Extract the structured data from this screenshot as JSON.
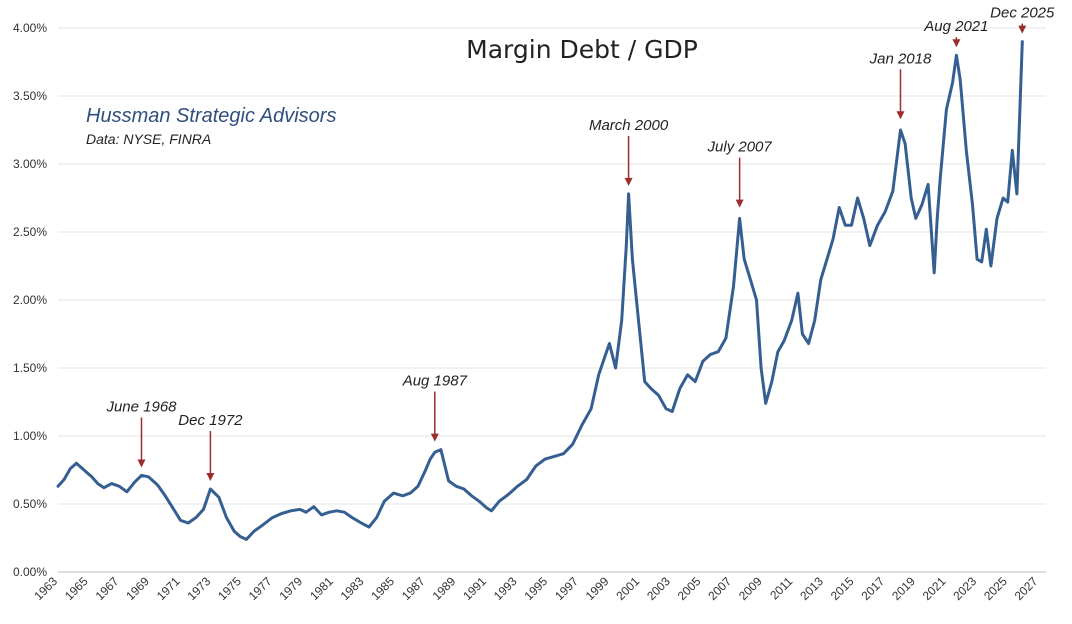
{
  "chart_data": {
    "type": "line",
    "title": "Margin Debt / GDP",
    "subtitle": "Hussman Strategic Advisors",
    "source": "Data: NYSE, FINRA",
    "xlabel": "",
    "ylabel": "",
    "xlim": [
      1963,
      2027.5
    ],
    "ylim": [
      0,
      4.0
    ],
    "grid": true,
    "y_ticks": [
      "0.00%",
      "0.50%",
      "1.00%",
      "1.50%",
      "2.00%",
      "2.50%",
      "3.00%",
      "3.50%",
      "4.00%"
    ],
    "x_ticks": [
      "1963",
      "1965",
      "1967",
      "1969",
      "1971",
      "1973",
      "1975",
      "1977",
      "1979",
      "1981",
      "1983",
      "1985",
      "1987",
      "1989",
      "1991",
      "1993",
      "1995",
      "1997",
      "1999",
      "2001",
      "2003",
      "2005",
      "2007",
      "2009",
      "2011",
      "2013",
      "2015",
      "2017",
      "2019",
      "2021",
      "2023",
      "2025",
      "2027"
    ],
    "series": [
      {
        "color": "#365f91",
        "x": [
          1963.0,
          1963.4,
          1963.8,
          1964.2,
          1964.7,
          1965.2,
          1965.6,
          1966.0,
          1966.5,
          1967.0,
          1967.5,
          1968.0,
          1968.45,
          1968.9,
          1969.5,
          1970.0,
          1970.5,
          1971.0,
          1971.5,
          1972.0,
          1972.5,
          1972.95,
          1973.5,
          1974.0,
          1974.5,
          1974.9,
          1975.3,
          1975.8,
          1976.3,
          1977.0,
          1977.6,
          1978.2,
          1978.8,
          1979.2,
          1979.7,
          1980.2,
          1980.7,
          1981.2,
          1981.7,
          1982.2,
          1982.8,
          1983.3,
          1983.8,
          1984.3,
          1984.9,
          1985.5,
          1986.0,
          1986.5,
          1987.0,
          1987.3,
          1987.6,
          1988.0,
          1988.5,
          1989.0,
          1989.5,
          1990.0,
          1990.5,
          1991.0,
          1991.3,
          1991.8,
          1992.4,
          1993.0,
          1993.6,
          1994.2,
          1994.8,
          1995.4,
          1996.0,
          1996.6,
          1997.2,
          1997.8,
          1998.3,
          1998.6,
          1999.0,
          1999.4,
          1999.8,
          2000.1,
          2000.25,
          2000.5,
          2000.9,
          2001.3,
          2001.7,
          2002.2,
          2002.7,
          2003.1,
          2003.6,
          2004.1,
          2004.6,
          2005.1,
          2005.6,
          2006.1,
          2006.6,
          2007.1,
          2007.5,
          2007.8,
          2008.2,
          2008.6,
          2008.9,
          2009.2,
          2009.6,
          2010.0,
          2010.4,
          2010.9,
          2011.3,
          2011.6,
          2012.0,
          2012.4,
          2012.8,
          2013.2,
          2013.6,
          2014.0,
          2014.4,
          2014.8,
          2015.2,
          2015.6,
          2016.0,
          2016.5,
          2017.0,
          2017.5,
          2018.0,
          2018.3,
          2018.7,
          2019.0,
          2019.4,
          2019.8,
          2020.2,
          2020.4,
          2020.6,
          2021.0,
          2021.4,
          2021.65,
          2021.9,
          2022.3,
          2022.7,
          2023.0,
          2023.3,
          2023.6,
          2023.9,
          2024.3,
          2024.7,
          2025.0,
          2025.3,
          2025.6,
          2025.95
        ],
        "values": [
          0.63,
          0.68,
          0.76,
          0.8,
          0.75,
          0.7,
          0.65,
          0.62,
          0.65,
          0.63,
          0.59,
          0.66,
          0.71,
          0.7,
          0.64,
          0.56,
          0.47,
          0.38,
          0.36,
          0.4,
          0.46,
          0.61,
          0.55,
          0.4,
          0.3,
          0.26,
          0.24,
          0.3,
          0.34,
          0.4,
          0.43,
          0.45,
          0.46,
          0.44,
          0.48,
          0.42,
          0.44,
          0.45,
          0.44,
          0.4,
          0.36,
          0.33,
          0.4,
          0.52,
          0.58,
          0.56,
          0.58,
          0.63,
          0.75,
          0.83,
          0.88,
          0.9,
          0.67,
          0.63,
          0.61,
          0.56,
          0.52,
          0.47,
          0.45,
          0.52,
          0.57,
          0.63,
          0.68,
          0.78,
          0.83,
          0.85,
          0.87,
          0.94,
          1.08,
          1.2,
          1.45,
          1.55,
          1.68,
          1.5,
          1.85,
          2.4,
          2.78,
          2.3,
          1.85,
          1.4,
          1.35,
          1.3,
          1.2,
          1.18,
          1.35,
          1.45,
          1.4,
          1.55,
          1.6,
          1.62,
          1.72,
          2.1,
          2.6,
          2.3,
          2.15,
          2.0,
          1.5,
          1.24,
          1.4,
          1.62,
          1.7,
          1.85,
          2.05,
          1.75,
          1.68,
          1.85,
          2.15,
          2.3,
          2.45,
          2.68,
          2.55,
          2.55,
          2.75,
          2.6,
          2.4,
          2.55,
          2.65,
          2.8,
          3.25,
          3.15,
          2.75,
          2.6,
          2.7,
          2.85,
          2.2,
          2.6,
          2.9,
          3.4,
          3.6,
          3.8,
          3.62,
          3.1,
          2.7,
          2.3,
          2.28,
          2.52,
          2.25,
          2.6,
          2.75,
          2.72,
          3.1,
          2.78,
          3.9
        ]
      }
    ],
    "annotations": [
      {
        "label": "June 1968",
        "x": 1968.45,
        "y": 0.71
      },
      {
        "label": "Dec 1972",
        "x": 1972.95,
        "y": 0.61
      },
      {
        "label": "Aug 1987",
        "x": 1987.6,
        "y": 0.9
      },
      {
        "label": "March 2000",
        "x": 2000.25,
        "y": 2.78
      },
      {
        "label": "July 2007",
        "x": 2007.5,
        "y": 2.62
      },
      {
        "label": "Jan 2018",
        "x": 2018.0,
        "y": 3.27
      },
      {
        "label": "Aug 2021",
        "x": 2021.65,
        "y": 3.8
      },
      {
        "label": "Dec 2025",
        "x": 2025.95,
        "y": 3.9
      }
    ]
  }
}
